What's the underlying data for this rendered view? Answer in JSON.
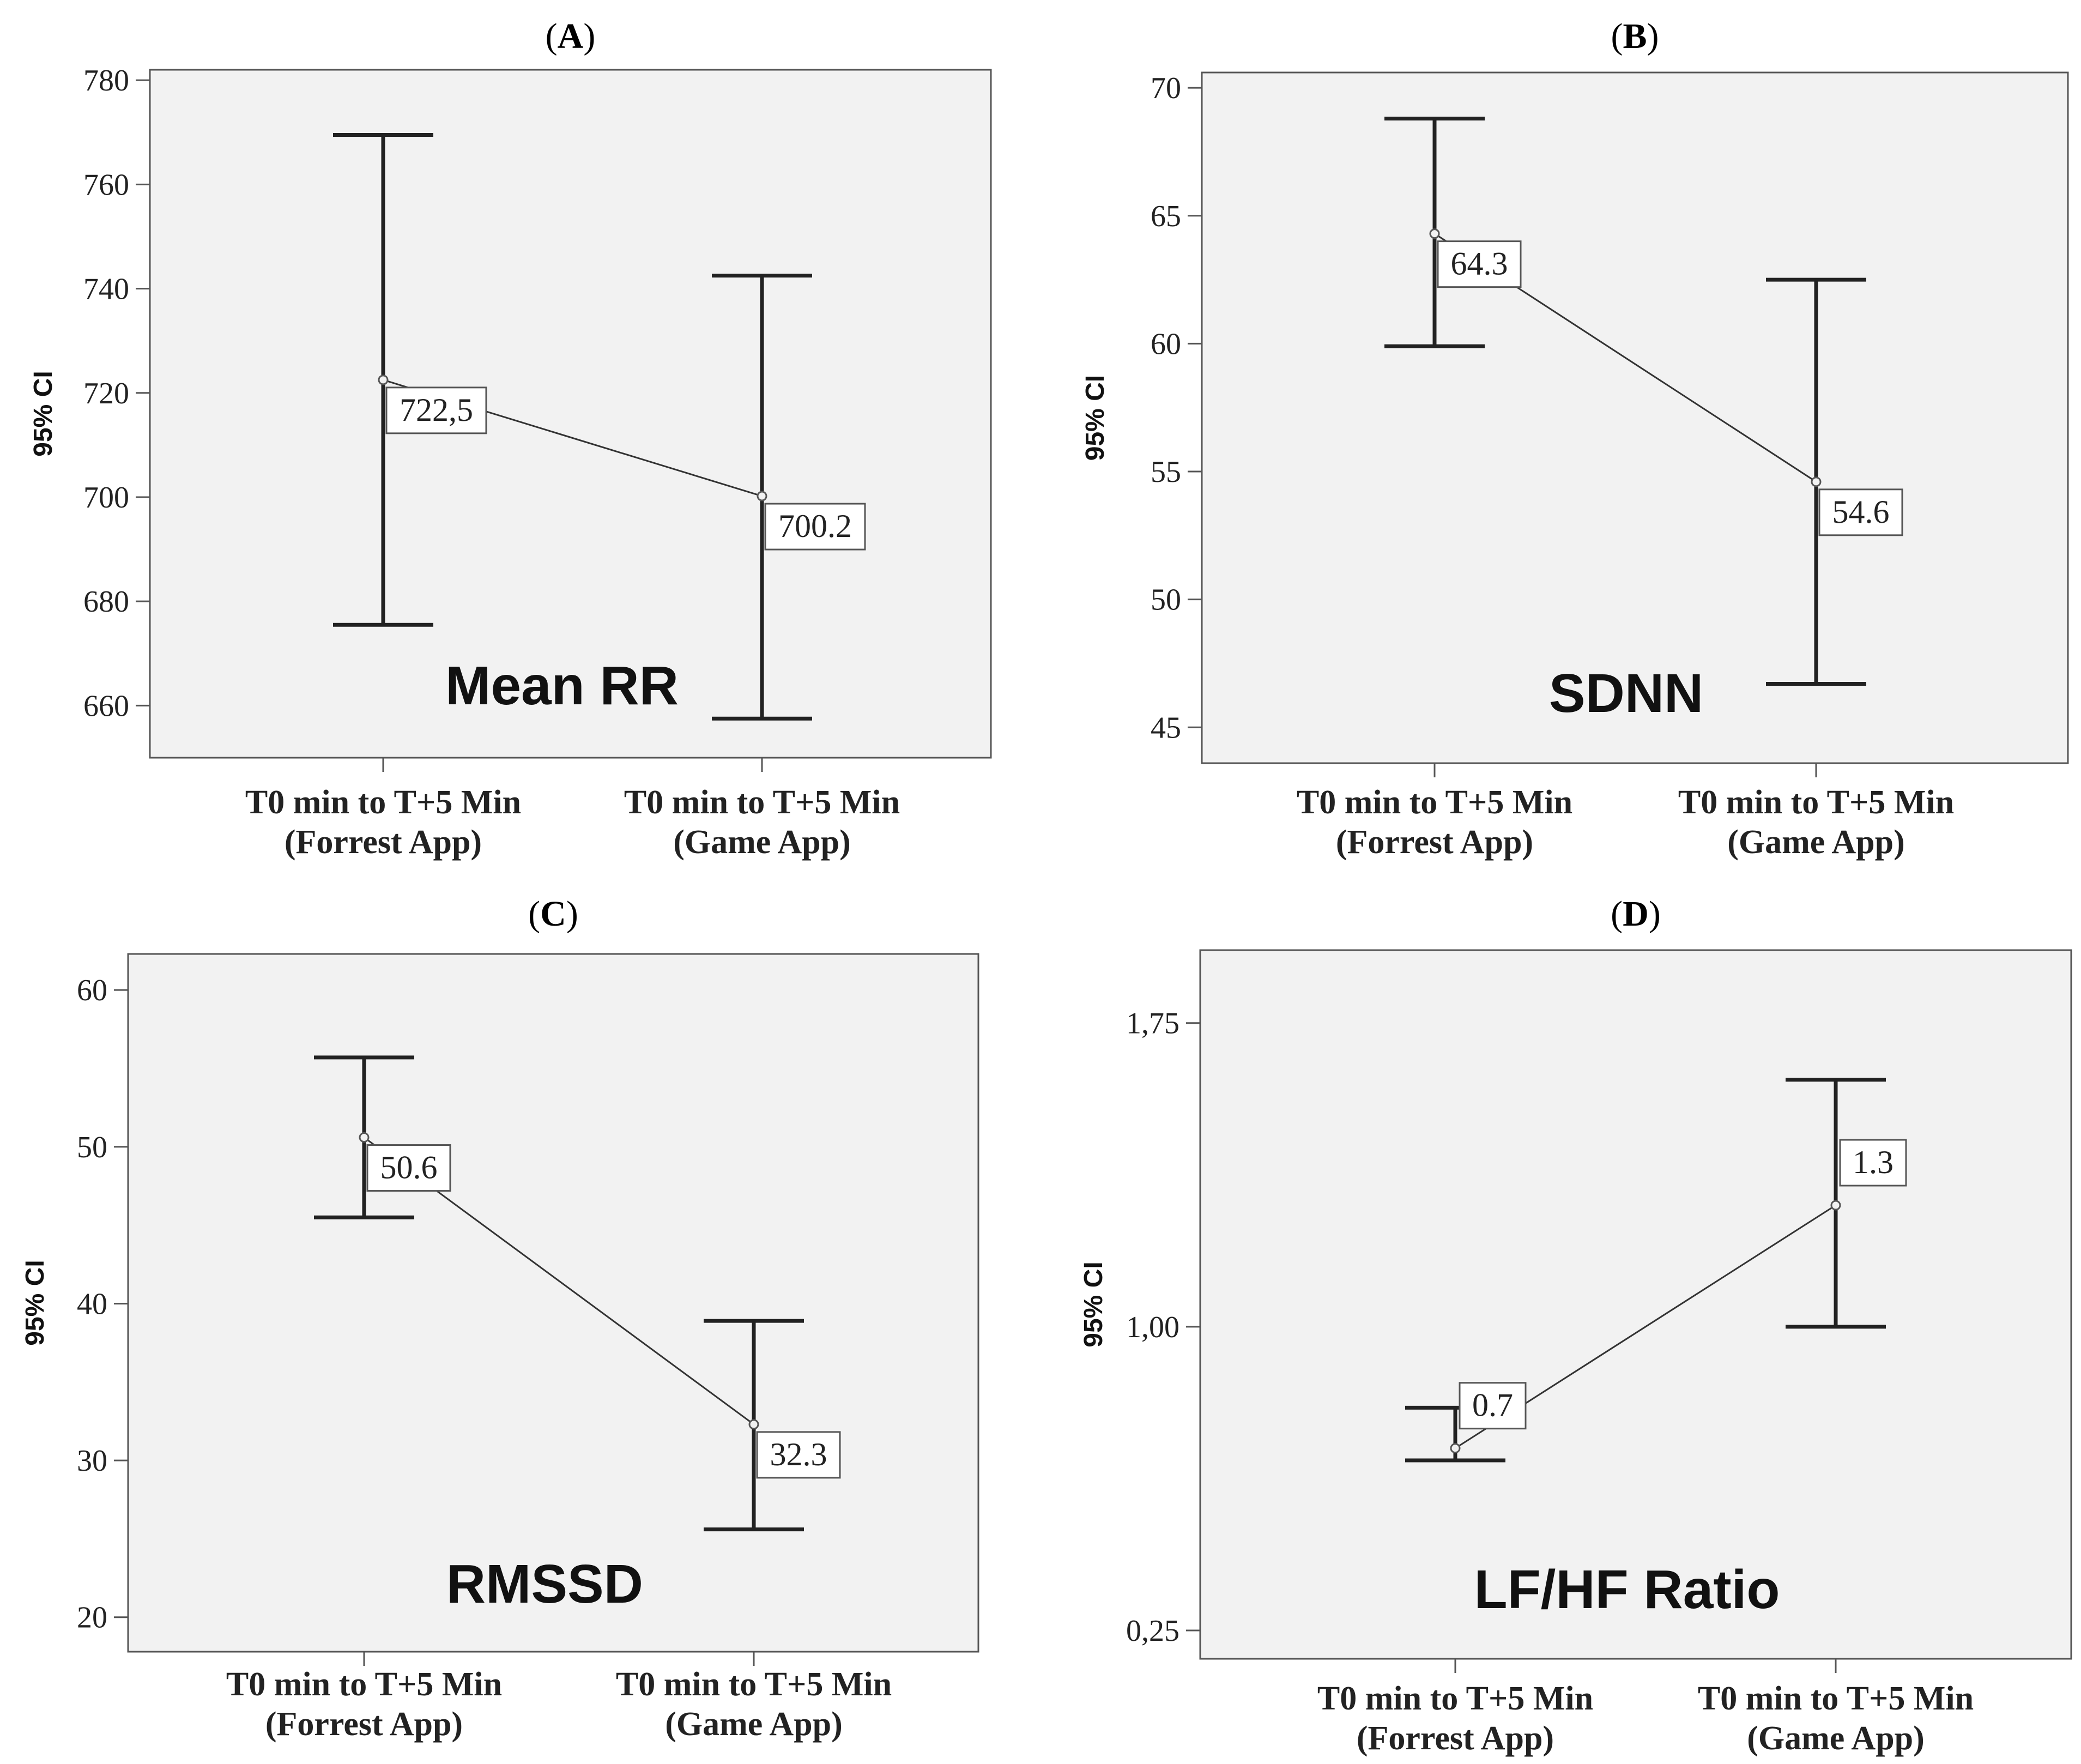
{
  "chart_data": [
    {
      "panel": "A",
      "type": "errorbar",
      "title_letter": "A",
      "metric": "Mean RR",
      "ylabel": "95% CI",
      "ylim": [
        650,
        782
      ],
      "yticks": [
        660,
        680,
        700,
        720,
        740,
        760,
        780
      ],
      "ytick_labels": [
        "660",
        "680",
        "700",
        "720",
        "740",
        "760",
        "780"
      ],
      "categories": [
        {
          "line1": "T0 min to T+5 Min",
          "line2": "(Forrest App)"
        },
        {
          "line1": "T0 min to T+5 Min",
          "line2": "(Game App)"
        }
      ],
      "means": [
        722.5,
        700.2
      ],
      "mean_labels": [
        "722,5",
        "700.2"
      ],
      "lower": [
        675.5,
        657.5
      ],
      "upper": [
        769.5,
        742.5
      ]
    },
    {
      "panel": "B",
      "type": "errorbar",
      "title_letter": "B",
      "metric": "SDNN",
      "ylabel": "95% CI",
      "ylim": [
        43.6,
        70.6
      ],
      "yticks": [
        45,
        50,
        55,
        60,
        65,
        70
      ],
      "ytick_labels": [
        "45",
        "50",
        "55",
        "60",
        "65",
        "70"
      ],
      "categories": [
        {
          "line1": "T0 min to T+5 Min",
          "line2": "(Forrest App)"
        },
        {
          "line1": "T0 min to T+5 Min",
          "line2": "(Game App)"
        }
      ],
      "means": [
        64.3,
        54.6
      ],
      "mean_labels": [
        "64.3",
        "54.6"
      ],
      "lower": [
        59.9,
        46.7
      ],
      "upper": [
        68.8,
        62.5
      ]
    },
    {
      "panel": "C",
      "type": "errorbar",
      "title_letter": "C",
      "metric": "RMSSD",
      "ylabel": "95% CI",
      "ylim": [
        17.8,
        62.3
      ],
      "yticks": [
        20,
        30,
        40,
        50,
        60
      ],
      "ytick_labels": [
        "20",
        "30",
        "40",
        "50",
        "60"
      ],
      "categories": [
        {
          "line1": "T0 min to T+5 Min",
          "line2": "(Forrest App)"
        },
        {
          "line1": "T0 min to T+5 Min",
          "line2": "(Game App)"
        }
      ],
      "means": [
        50.6,
        32.3
      ],
      "mean_labels": [
        "50.6",
        "32.3"
      ],
      "lower": [
        45.5,
        25.6
      ],
      "upper": [
        55.7,
        38.9
      ]
    },
    {
      "panel": "D",
      "type": "errorbar",
      "title_letter": "D",
      "metric": "LF/HF Ratio",
      "ylabel": "95% CI",
      "ylim": [
        0.18,
        1.93
      ],
      "yticks": [
        0.25,
        1.0,
        1.75
      ],
      "ytick_labels": [
        "0,25",
        "1,00",
        "1,75"
      ],
      "categories": [
        {
          "line1": "T0 min to T+5 Min",
          "line2": "(Forrest App)"
        },
        {
          "line1": "T0 min to T+5 Min",
          "line2": "(Game App)"
        }
      ],
      "means": [
        0.7,
        1.3
      ],
      "mean_labels": [
        "0.7",
        "1.3"
      ],
      "lower": [
        0.67,
        1.0
      ],
      "upper": [
        0.8,
        1.61
      ],
      "label_offset_up": true
    }
  ]
}
